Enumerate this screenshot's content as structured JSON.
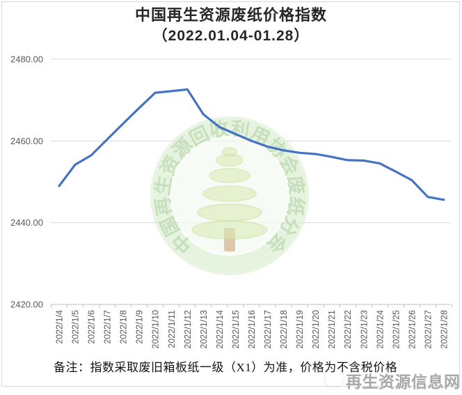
{
  "title": {
    "line1": "中国再生资源废纸价格指数",
    "line2": "（2022.01.04-01.28）"
  },
  "note": "备注：指数采取废旧箱板纸一级（X1）为准，价格为不含税价格",
  "watermark": {
    "ring_text": "中国再生资源回收利用协会废纸分会",
    "site_text": "再生资源信息网"
  },
  "colors": {
    "line": "#4472C4",
    "grid": "#D9D9D9",
    "axis": "#BFBFBF",
    "tick_label": "#595959",
    "title_text": "#262626",
    "watermark_ring": "#DEF0D5",
    "watermark_text_green": "#A8CC9B",
    "watermark_leaf": "#D7E7B0",
    "watermark_trunk": "#C08A52",
    "stamp_gray": "#9A9A9A"
  },
  "y_axis": {
    "ticks": [
      {
        "label": "2480.00",
        "value": 2480
      },
      {
        "label": "2460.00",
        "value": 2460
      },
      {
        "label": "2440.00",
        "value": 2440
      },
      {
        "label": "2420.00",
        "value": 2420
      }
    ]
  },
  "chart_data": {
    "type": "line",
    "title": "中国再生资源废纸价格指数（2022.01.04-01.28）",
    "xlabel": "",
    "ylabel": "",
    "ylim": [
      2420,
      2480
    ],
    "y_ticks": [
      2420,
      2440,
      2460,
      2480
    ],
    "grid": true,
    "legend": false,
    "series_color": "#4472C4",
    "x": [
      "2022/1/4",
      "2022/1/5",
      "2022/1/6",
      "2022/1/7",
      "2022/1/8",
      "2022/1/9",
      "2022/1/10",
      "2022/1/11",
      "2022/1/12",
      "2022/1/13",
      "2022/1/14",
      "2022/1/15",
      "2022/1/16",
      "2022/1/17",
      "2022/1/18",
      "2022/1/19",
      "2022/1/20",
      "2022/1/21",
      "2022/1/22",
      "2022/1/23",
      "2022/1/24",
      "2022/1/25",
      "2022/1/26",
      "2022/1/27",
      "2022/1/28"
    ],
    "values": [
      2449.0,
      2454.2,
      2456.5,
      2460.4,
      2464.3,
      2468.1,
      2471.8,
      2472.2,
      2472.6,
      2466.5,
      2463.4,
      2461.7,
      2460.0,
      2458.6,
      2457.7,
      2457.1,
      2456.8,
      2456.1,
      2455.3,
      2455.2,
      2454.5,
      2452.5,
      2450.4,
      2446.3,
      2445.6
    ]
  }
}
